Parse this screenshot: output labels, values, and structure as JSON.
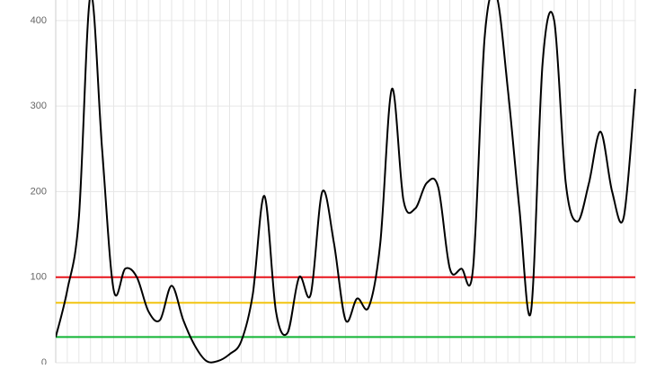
{
  "chart_data": {
    "type": "line",
    "categories": [
      null,
      null,
      null,
      null,
      null,
      null,
      null,
      null,
      null,
      null,
      null,
      null,
      null,
      null,
      null,
      null,
      null,
      null,
      null,
      null,
      null,
      null,
      null,
      null,
      null,
      null,
      null,
      null,
      null,
      null,
      null,
      null,
      null,
      null,
      null,
      null,
      null,
      null,
      null,
      null,
      null,
      null,
      null,
      null,
      null,
      null,
      null,
      null,
      null,
      null,
      null
    ],
    "series": [
      {
        "color": "#000000",
        "values": [
          30,
          85,
          170,
          430,
          250,
          85,
          110,
          100,
          60,
          50,
          90,
          50,
          20,
          2,
          2,
          10,
          25,
          80,
          195,
          60,
          35,
          100,
          80,
          200,
          140,
          50,
          75,
          65,
          140,
          320,
          190,
          180,
          210,
          205,
          110,
          110,
          110,
          380,
          430,
          320,
          180,
          60,
          350,
          400,
          210,
          165,
          210,
          270,
          200,
          170,
          320
        ]
      }
    ],
    "thresholds": [
      {
        "value": 100,
        "color": "#e8141b"
      },
      {
        "value": 70,
        "color": "#f2c40f"
      },
      {
        "value": 30,
        "color": "#12b534"
      }
    ],
    "ylim": [
      0,
      424
    ],
    "yticks": [
      0,
      100,
      200,
      300,
      400
    ],
    "grid": true
  }
}
